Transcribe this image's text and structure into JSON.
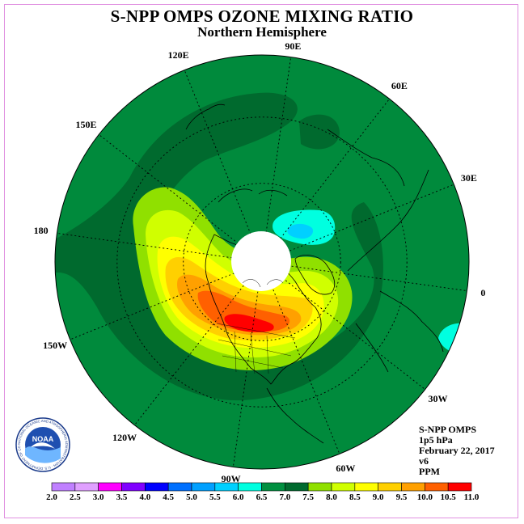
{
  "header": {
    "title": "S-NPP OMPS OZONE MIXING RATIO",
    "subtitle": "Northern Hemisphere"
  },
  "longitude_labels": [
    {
      "text": "90E",
      "deg": 90
    },
    {
      "text": "60E",
      "deg": 60
    },
    {
      "text": "30E",
      "deg": 30
    },
    {
      "text": "0",
      "deg": 0
    },
    {
      "text": "30W",
      "deg": -30
    },
    {
      "text": "60W",
      "deg": -60
    },
    {
      "text": "90W",
      "deg": -90
    },
    {
      "text": "120W",
      "deg": -120
    },
    {
      "text": "150W",
      "deg": -150
    },
    {
      "text": "180",
      "deg": 180
    },
    {
      "text": "150E",
      "deg": 150
    },
    {
      "text": "120E",
      "deg": 120
    }
  ],
  "info": {
    "instrument": "S-NPP OMPS",
    "level": "1p5 hPa",
    "date": "February 22, 2017",
    "version": "v6",
    "units": "PPM"
  },
  "logo": {
    "text": "NOAA",
    "ring_text": "NATIONAL OCEANIC AND ATMOSPHERIC ADMINISTRATION · U.S. DEPARTMENT OF COMMERCE"
  },
  "colorbar": {
    "ticks": [
      "2.0",
      "2.5",
      "3.0",
      "3.5",
      "4.0",
      "4.5",
      "5.0",
      "5.5",
      "6.0",
      "6.5",
      "7.0",
      "7.5",
      "8.0",
      "8.5",
      "9.0",
      "9.5",
      "10.0",
      "10.5",
      "11.0"
    ],
    "colors": [
      "#c080ff",
      "#e0a0ff",
      "#ff00ff",
      "#8000ff",
      "#0000ff",
      "#0070ff",
      "#00a0ff",
      "#00d0ff",
      "#00ffe0",
      "#009040",
      "#006a2e",
      "#90e000",
      "#d0ff00",
      "#ffff00",
      "#ffd000",
      "#ffa000",
      "#ff6000",
      "#ff0000",
      "#804020"
    ]
  }
}
